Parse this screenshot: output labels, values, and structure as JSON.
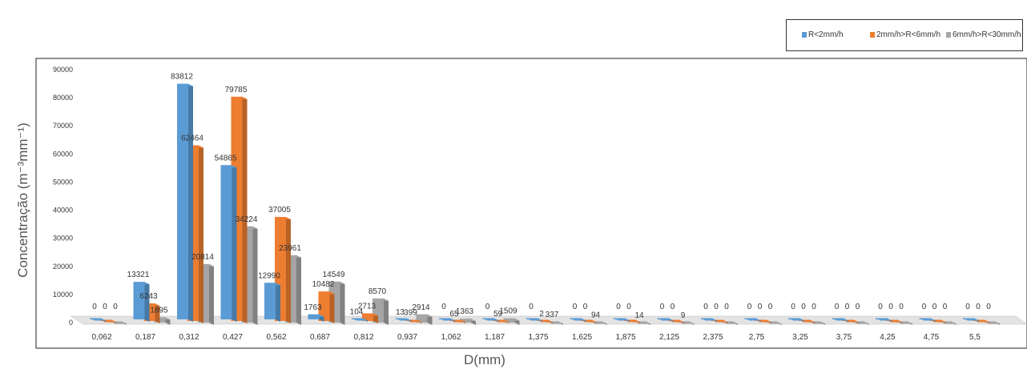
{
  "chart_data": {
    "type": "bar",
    "xlabel": "D(mm)",
    "ylabel": "Concentração (m⁻³mm⁻¹)",
    "ylim": [
      0,
      90000
    ],
    "yticks": [
      "0",
      "10000",
      "20000",
      "30000",
      "40000",
      "50000",
      "60000",
      "70000",
      "80000",
      "90000"
    ],
    "categories": [
      "0,062",
      "0,187",
      "0,312",
      "0,427",
      "0,562",
      "0,687",
      "0,812",
      "0,937",
      "1,062",
      "1,187",
      "1,375",
      "1,625",
      "1,875",
      "2,125",
      "2,375",
      "2,75",
      "3,25",
      "3,75",
      "4,25",
      "4,75",
      "5,5"
    ],
    "series": [
      {
        "name": "R<2mm/h",
        "color": "#5b9bd5",
        "values": [
          0,
          13321,
          83812,
          54865,
          12990,
          1763,
          104,
          13,
          0,
          0,
          0,
          0,
          0,
          0,
          0,
          0,
          0,
          0,
          0,
          0,
          0
        ]
      },
      {
        "name": "2mm/h>R<6mm/h",
        "color": "#ed7d31",
        "values": [
          0,
          6243,
          62464,
          79785,
          37005,
          10482,
          2713,
          399,
          65,
          59,
          2,
          0,
          0,
          0,
          0,
          0,
          0,
          0,
          0,
          0,
          0
        ]
      },
      {
        "name": "6mm/h>R<30mm/h",
        "color": "#a5a5a5",
        "values": [
          0,
          1895,
          20814,
          34224,
          23961,
          14549,
          8570,
          2914,
          1363,
          1509,
          337,
          94,
          14,
          9,
          0,
          0,
          0,
          0,
          0,
          0,
          0
        ]
      }
    ],
    "legend_position": "top-right",
    "grid": false
  }
}
